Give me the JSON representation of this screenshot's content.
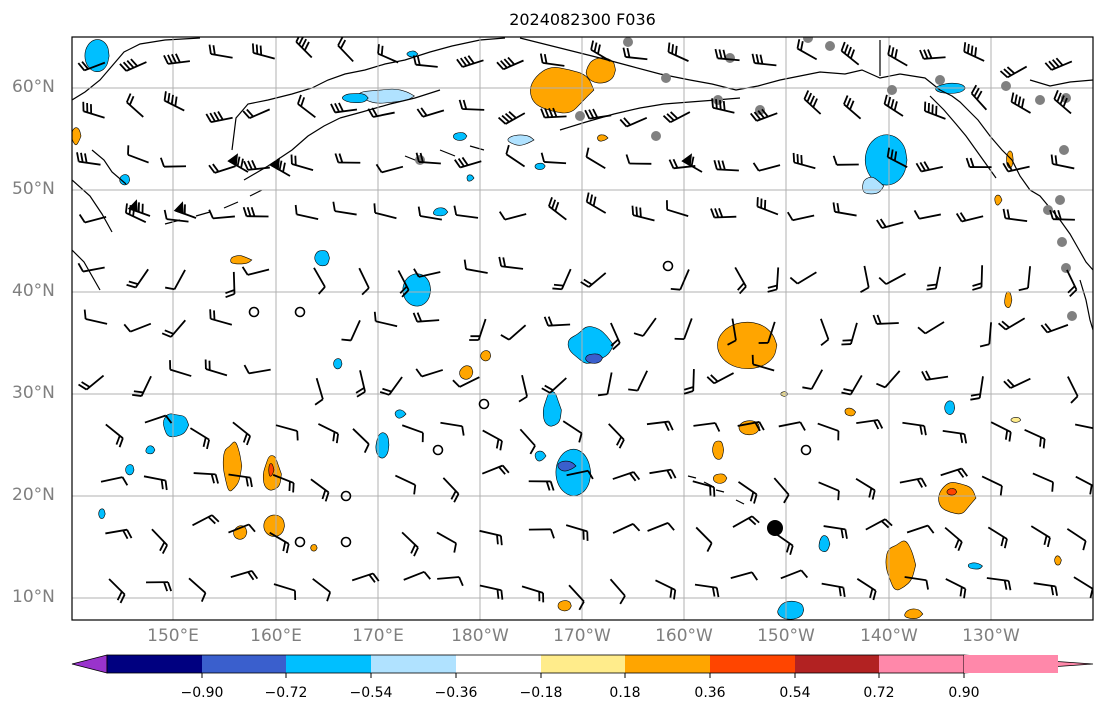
{
  "title": "2024082300 F036",
  "lat_labels": [
    "60°N",
    "50°N",
    "40°N",
    "30°N",
    "20°N",
    "10°N"
  ],
  "lon_labels": [
    "150°E",
    "160°E",
    "170°E",
    "180°W",
    "170°W",
    "160°W",
    "150°W",
    "140°W",
    "130°W"
  ],
  "colorbar": {
    "labels": [
      "−0.90",
      "−0.72",
      "−0.54",
      "−0.36",
      "−0.18",
      "0.18",
      "0.36",
      "0.54",
      "0.72",
      "0.90"
    ],
    "colors": [
      "#9933cc",
      "#000080",
      "#3a5fcd",
      "#00bfff",
      "#b0e2ff",
      "#ffffff",
      "#ffec8b",
      "#ffa500",
      "#ff4500",
      "#b22222",
      "#ff88aa"
    ]
  },
  "colors": {
    "land_outline": "#000000",
    "grid": "#b0b0b0",
    "stations": "#808080"
  }
}
